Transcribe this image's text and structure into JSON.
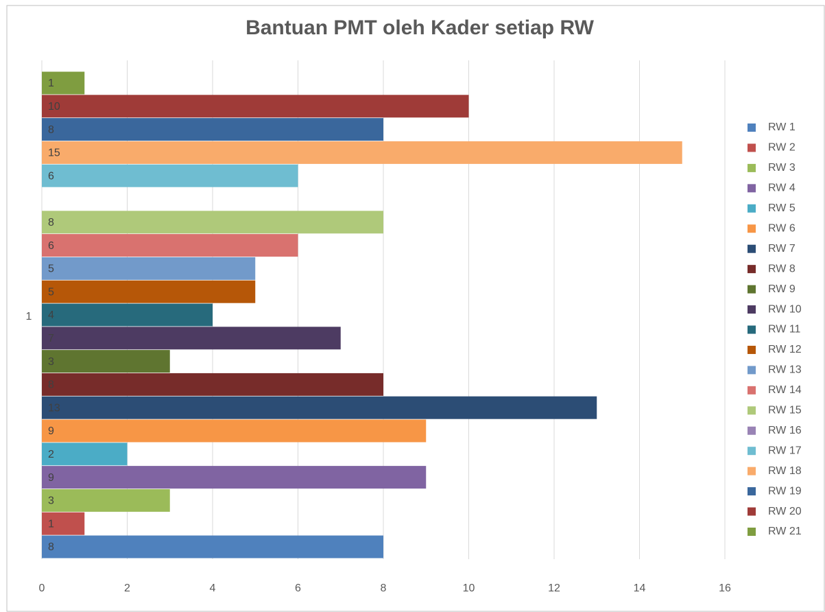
{
  "chart_data": {
    "type": "hbar",
    "title": "Bantuan PMT oleh Kader setiap RW",
    "categories": [
      "1"
    ],
    "series": [
      {
        "name": "RW 1",
        "color": "#4f81bd",
        "values": [
          8
        ]
      },
      {
        "name": "RW 2",
        "color": "#c0504d",
        "values": [
          1
        ]
      },
      {
        "name": "RW 3",
        "color": "#9bbb59",
        "values": [
          3
        ]
      },
      {
        "name": "RW 4",
        "color": "#8064a2",
        "values": [
          9
        ]
      },
      {
        "name": "RW 5",
        "color": "#4bacc6",
        "values": [
          2
        ]
      },
      {
        "name": "RW 6",
        "color": "#f79646",
        "values": [
          9
        ]
      },
      {
        "name": "RW 7",
        "color": "#2c4d75",
        "values": [
          13
        ]
      },
      {
        "name": "RW 8",
        "color": "#772c2a",
        "values": [
          8
        ]
      },
      {
        "name": "RW 9",
        "color": "#5f7530",
        "values": [
          3
        ]
      },
      {
        "name": "RW 10",
        "color": "#4d3b62",
        "values": [
          7
        ]
      },
      {
        "name": "RW 11",
        "color": "#276a7c",
        "values": [
          4
        ]
      },
      {
        "name": "RW 12",
        "color": "#b65708",
        "values": [
          5
        ]
      },
      {
        "name": "RW 13",
        "color": "#729aca",
        "values": [
          5
        ]
      },
      {
        "name": "RW 14",
        "color": "#d9726f",
        "values": [
          6
        ]
      },
      {
        "name": "RW 15",
        "color": "#afc97a",
        "values": [
          8
        ]
      },
      {
        "name": "RW 16",
        "color": "#9983b5",
        "values": [
          null
        ]
      },
      {
        "name": "RW 17",
        "color": "#6fbdd1",
        "values": [
          6
        ]
      },
      {
        "name": "RW 18",
        "color": "#f9ab6b",
        "values": [
          15
        ]
      },
      {
        "name": "RW 19",
        "color": "#3a679c",
        "values": [
          8
        ]
      },
      {
        "name": "RW 20",
        "color": "#9f3b38",
        "values": [
          10
        ]
      },
      {
        "name": "RW 21",
        "color": "#7f9d40",
        "values": [
          1
        ]
      }
    ],
    "xlim": [
      0,
      16
    ],
    "xticks": [
      0,
      2,
      4,
      6,
      8,
      10,
      12,
      14,
      16
    ],
    "grid": true,
    "legend": "right"
  }
}
